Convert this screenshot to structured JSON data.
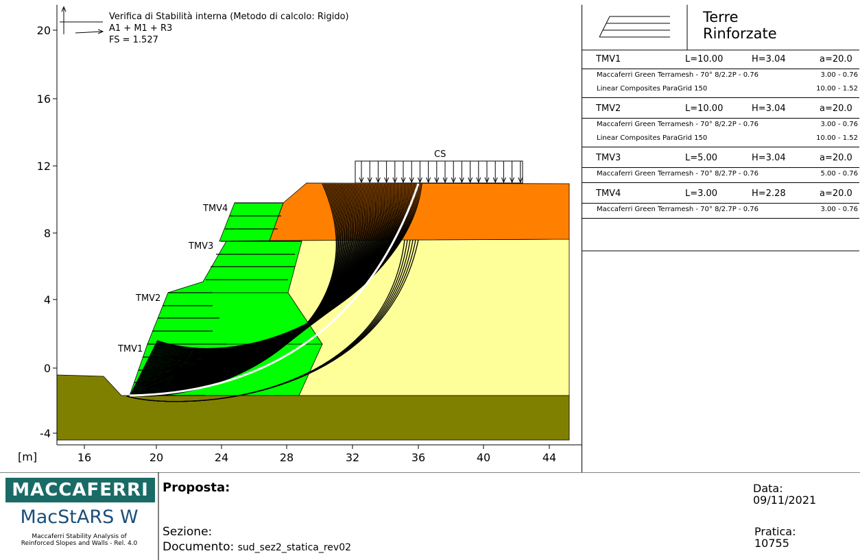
{
  "plot": {
    "title_line1": "Verifica di Stabilità interna (Metodo di calcolo: Rigido)",
    "title_line2": "A1 + M1 + R3",
    "title_line3": "FS = 1.527",
    "unit_label": "[m]",
    "x_ticks": [
      "16",
      "20",
      "24",
      "28",
      "32",
      "36",
      "40",
      "44"
    ],
    "y_ticks": [
      "20",
      "16",
      "12",
      "8",
      "4",
      "0",
      "-4"
    ],
    "load_label": "CS",
    "blocks": [
      "TMV1",
      "TMV2",
      "TMV3",
      "TMV4"
    ]
  },
  "panel": {
    "title_line1": "Terre",
    "title_line2": "Rinforzate",
    "rows": [
      {
        "name": "TMV1",
        "L": "L=10.00",
        "H": "H=3.04",
        "a": "a=20.0",
        "items": [
          {
            "desc": "Maccaferri Green Terramesh - 70° 8/2.2P - 0.76",
            "val": "3.00 - 0.76"
          },
          {
            "desc": "Linear Composites ParaGrid 150",
            "val": "10.00 - 1.52"
          }
        ]
      },
      {
        "name": "TMV2",
        "L": "L=10.00",
        "H": "H=3.04",
        "a": "a=20.0",
        "items": [
          {
            "desc": "Maccaferri Green Terramesh - 70° 8/2.2P - 0.76",
            "val": "3.00 - 0.76"
          },
          {
            "desc": "Linear Composites ParaGrid 150",
            "val": "10.00 - 1.52"
          }
        ]
      },
      {
        "name": "TMV3",
        "L": "L=5.00",
        "H": "H=3.04",
        "a": "a=20.0",
        "items": [
          {
            "desc": "Maccaferri Green Terramesh - 70° 8/2.7P - 0.76",
            "val": "5.00 - 0.76"
          }
        ]
      },
      {
        "name": "TMV4",
        "L": "L=3.00",
        "H": "H=2.28",
        "a": "a=20.0",
        "items": [
          {
            "desc": "Maccaferri Green Terramesh - 70° 8/2.7P - 0.76",
            "val": "3.00 - 0.76"
          }
        ]
      }
    ]
  },
  "footer": {
    "brand": "MACCAFERRI",
    "product": "MacStARS W",
    "subtitle_line1": "Maccaferri Stability Analysis of",
    "subtitle_line2": "Reinforced Slopes and Walls - Rel. 4.0",
    "proposta_label": "Proposta:",
    "sezione_label": "Sezione:",
    "documento_label": "Documento:",
    "documento_value": "sud_sez2_statica_rev02",
    "data_label": "Data:",
    "data_value": "09/11/2021",
    "pratica_label": "Pratica:",
    "pratica_value": "10755"
  },
  "colors": {
    "foundation": "#808000",
    "clay": "#FF8000",
    "backfill": "#FFFF99",
    "reinforced": "#00FF00",
    "brand": "#1a6b66"
  }
}
